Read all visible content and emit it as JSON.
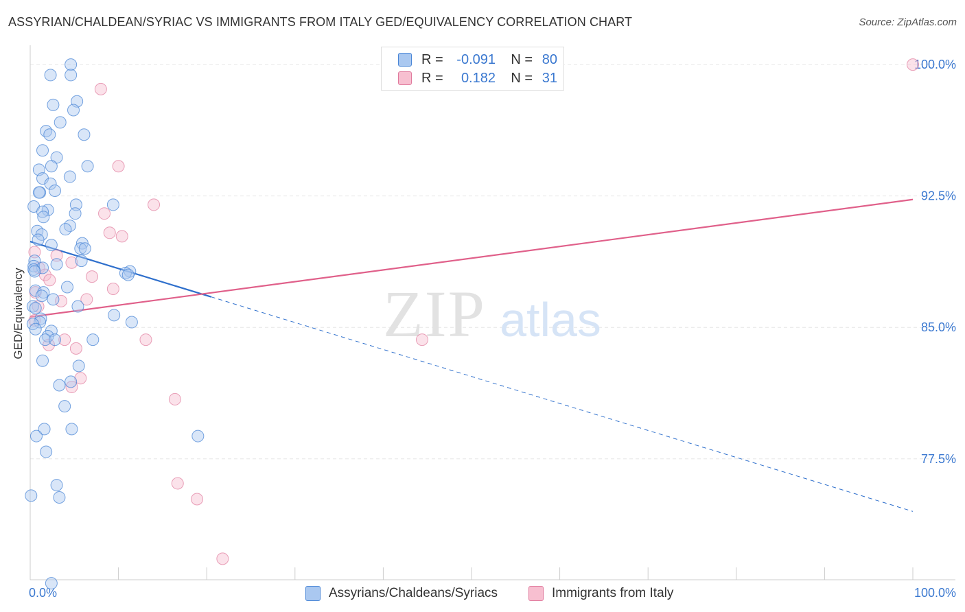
{
  "title": "ASSYRIAN/CHALDEAN/SYRIAC VS IMMIGRANTS FROM ITALY GED/EQUIVALENCY CORRELATION CHART",
  "source": "Source: ZipAtlas.com",
  "watermark": {
    "zip": "ZIP",
    "atlas": "atlas"
  },
  "legend": {
    "series1": {
      "r_label": "R =",
      "r_value": "-0.091",
      "n_label": "N =",
      "n_value": "80"
    },
    "series2": {
      "r_label": "R =",
      "r_value": "0.182",
      "n_label": "N =",
      "n_value": "31"
    }
  },
  "colors": {
    "blue_fill": "#aac8f0",
    "blue_stroke": "#4a86d6",
    "blue_line": "#2e6fcc",
    "pink_fill": "#f7bfd0",
    "pink_stroke": "#e07a9d",
    "pink_line": "#e0608a",
    "grid": "#e6e6e6",
    "axis_text": "#3a78d0"
  },
  "chart_data": {
    "type": "scatter",
    "title": "ASSYRIAN/CHALDEAN/SYRIAC VS IMMIGRANTS FROM ITALY GED/EQUIVALENCY CORRELATION CHART",
    "xlabel": "",
    "ylabel": "GED/Equivalency",
    "xlim": [
      0,
      100
    ],
    "ylim": [
      70.6,
      101.1
    ],
    "x_tick_labels": [
      "0.0%",
      "100.0%"
    ],
    "y_ticks": [
      77.5,
      85.0,
      92.5,
      100.0
    ],
    "y_tick_labels": [
      "77.5%",
      "85.0%",
      "92.5%",
      "100.0%"
    ],
    "grid": true,
    "series": [
      {
        "name": "Assyrians/Chaldeans/Syriacs",
        "color": "#4a86d6",
        "x": [
          4.6,
          4.6,
          2.3,
          2.6,
          5.3,
          4.9,
          3.4,
          1.8,
          2.2,
          6.1,
          1.4,
          3.0,
          2.4,
          6.5,
          1.0,
          4.5,
          1.4,
          2.3,
          2.8,
          1.1,
          1.0,
          5.2,
          9.4,
          0.4,
          2.0,
          1.4,
          5.1,
          1.5,
          4.5,
          4.0,
          0.8,
          1.3,
          0.9,
          5.9,
          2.4,
          5.7,
          6.2,
          0.5,
          5.8,
          3.0,
          0.4,
          1.4,
          0.4,
          0.5,
          11.3,
          10.8,
          11.1,
          4.2,
          0.6,
          1.5,
          1.3,
          2.6,
          5.4,
          0.3,
          0.6,
          9.5,
          1.2,
          1.1,
          11.5,
          0.3,
          0.6,
          2.4,
          2.0,
          1.7,
          7.1,
          2.8,
          1.4,
          5.5,
          4.6,
          3.3,
          3.9,
          1.6,
          4.7,
          19.0,
          1.8,
          3.0,
          0.1,
          3.3,
          2.4,
          0.7
        ],
        "y": [
          100.0,
          99.4,
          99.4,
          97.7,
          97.9,
          97.4,
          96.7,
          96.2,
          96.0,
          96.0,
          95.1,
          94.7,
          94.2,
          94.2,
          94.0,
          93.6,
          93.5,
          93.2,
          92.8,
          92.7,
          92.7,
          92.0,
          92.0,
          91.9,
          91.7,
          91.6,
          91.5,
          91.3,
          90.8,
          90.6,
          90.5,
          90.3,
          90.0,
          89.8,
          89.7,
          89.5,
          89.5,
          88.8,
          88.8,
          88.6,
          88.5,
          88.4,
          88.3,
          88.2,
          88.2,
          88.1,
          88.0,
          87.3,
          87.1,
          87.0,
          86.8,
          86.6,
          86.2,
          86.2,
          86.1,
          85.7,
          85.5,
          85.3,
          85.3,
          85.2,
          84.9,
          84.8,
          84.5,
          84.3,
          84.3,
          84.3,
          83.1,
          82.8,
          81.9,
          81.7,
          80.5,
          79.2,
          79.2,
          78.8,
          77.9,
          76.0,
          75.4,
          75.3,
          70.4,
          78.8
        ]
      },
      {
        "name": "Immigrants from Italy",
        "color": "#e07a9d",
        "x": [
          100.0,
          8.0,
          10.0,
          14.0,
          8.4,
          9.0,
          10.4,
          0.5,
          3.0,
          4.7,
          1.0,
          1.7,
          7.0,
          2.2,
          9.4,
          0.6,
          6.4,
          0.9,
          3.5,
          0.5,
          3.9,
          13.1,
          2.1,
          5.2,
          44.4,
          5.7,
          4.7,
          16.4,
          16.7,
          18.9,
          21.8
        ],
        "y": [
          100.0,
          98.6,
          94.2,
          92.0,
          91.5,
          90.4,
          90.2,
          89.3,
          89.1,
          88.7,
          88.4,
          88.0,
          87.9,
          87.7,
          87.2,
          87.0,
          86.6,
          86.2,
          86.5,
          85.4,
          84.3,
          84.3,
          84.0,
          83.8,
          84.3,
          82.1,
          81.6,
          80.9,
          76.1,
          75.2,
          71.8
        ]
      }
    ],
    "trendlines": [
      {
        "series": "Assyrians/Chaldeans/Syriacs",
        "x_start": 0,
        "y_start": 89.9,
        "x_solid_end": 20.5,
        "x_end": 100,
        "y_end": 74.5,
        "dashed_after_solid": true
      },
      {
        "series": "Immigrants from Italy",
        "x_start": 0,
        "y_start": 85.6,
        "x_end": 100,
        "y_end": 92.3
      }
    ]
  },
  "bottom_legend": {
    "item1": "Assyrians/Chaldeans/Syriacs",
    "item2": "Immigrants from Italy"
  }
}
